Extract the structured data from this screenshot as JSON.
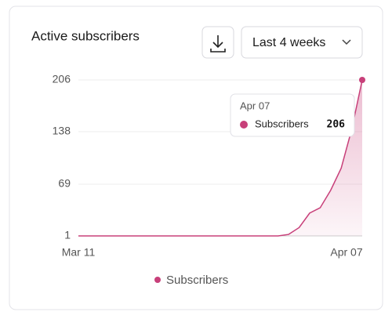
{
  "chart_data": {
    "type": "line",
    "title": "Active subscribers",
    "period": "Last 4 weeks",
    "categories": [
      "Mar 11",
      null,
      null,
      null,
      null,
      null,
      null,
      null,
      null,
      null,
      null,
      null,
      null,
      null,
      null,
      null,
      null,
      null,
      null,
      null,
      null,
      null,
      null,
      null,
      null,
      null,
      null,
      "Apr 07"
    ],
    "series": [
      {
        "name": "Subscribers",
        "color": "#c8407a",
        "values": [
          1,
          1,
          1,
          1,
          1,
          1,
          1,
          1,
          1,
          1,
          1,
          1,
          1,
          1,
          1,
          1,
          1,
          1,
          1,
          1,
          3,
          12,
          31,
          38,
          61,
          90,
          141,
          206
        ]
      }
    ],
    "ylim": [
      1,
      206
    ],
    "yticks": [
      1,
      69,
      138,
      206
    ],
    "grid": true,
    "tooltip_index": 27
  }
}
